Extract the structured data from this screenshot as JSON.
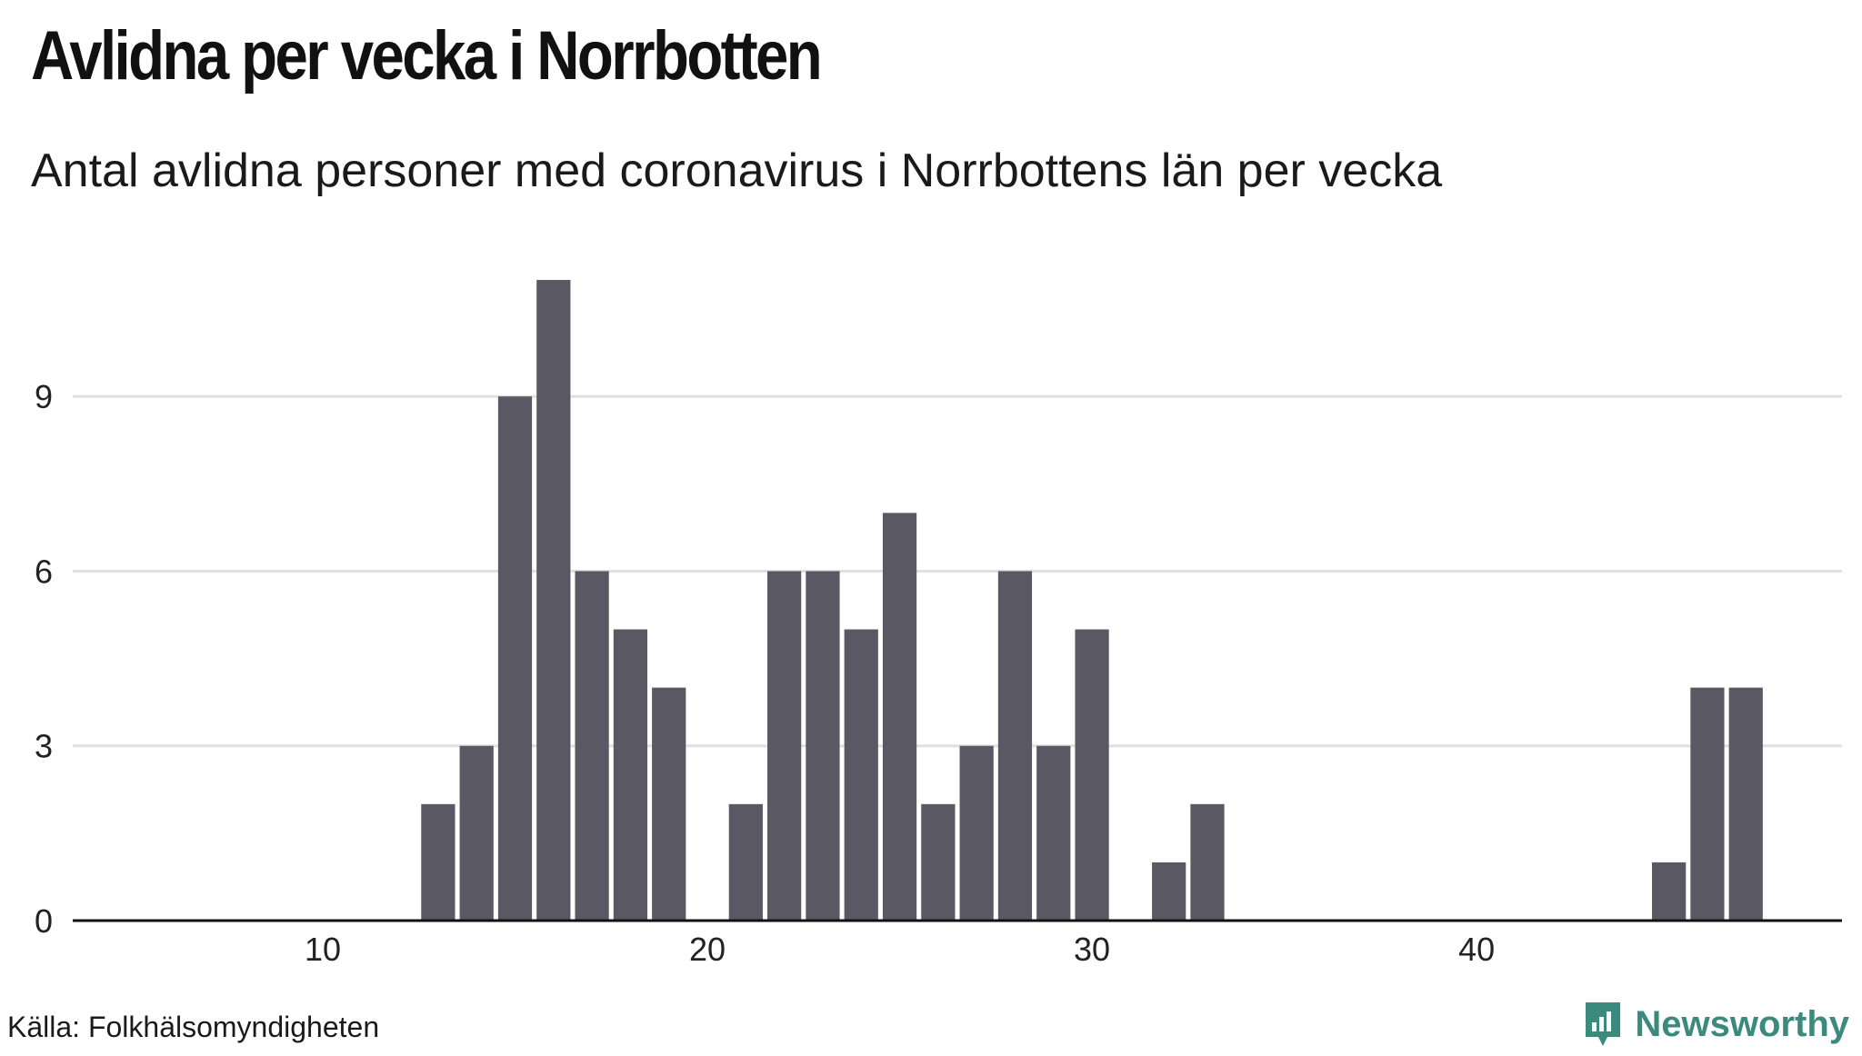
{
  "title": "Avlidna per vecka i Norrbotten",
  "subtitle": "Antal avlidna personer med coronavirus i Norrbottens län per vecka",
  "source": "Källa: Folkhälsomyndigheten",
  "brand": {
    "name": "Newsworthy",
    "icon": "bar-chart-logo-icon",
    "color": "#3c8a7e"
  },
  "colors": {
    "bar": "#5a5862",
    "grid": "#e0e0e4",
    "axis": "#111111"
  },
  "chart_data": {
    "type": "bar",
    "title": "Avlidna per vecka i Norrbotten",
    "subtitle": "Antal avlidna personer med coronavirus i Norrbottens län per vecka",
    "xlabel": "",
    "ylabel": "",
    "x": [
      13,
      14,
      15,
      16,
      17,
      18,
      19,
      21,
      22,
      23,
      24,
      25,
      26,
      27,
      28,
      29,
      30,
      32,
      33,
      45,
      46,
      47
    ],
    "values": [
      2,
      3,
      9,
      11,
      6,
      5,
      4,
      2,
      6,
      6,
      5,
      7,
      2,
      3,
      6,
      3,
      5,
      1,
      2,
      1,
      4,
      4
    ],
    "xlim": [
      3.5,
      49.5
    ],
    "ylim": [
      0,
      11.5
    ],
    "x_ticks": [
      10,
      20,
      30,
      40
    ],
    "y_ticks": [
      0,
      3,
      6,
      9
    ],
    "grid": true,
    "legend": "none"
  }
}
